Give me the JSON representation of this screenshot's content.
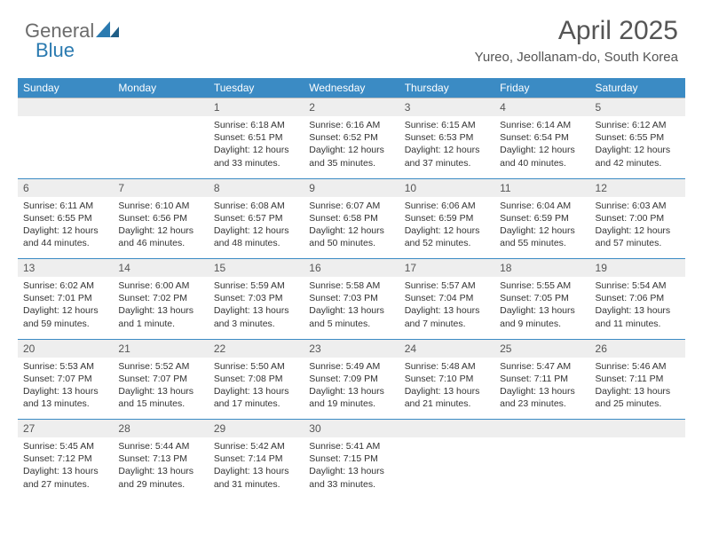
{
  "brand": {
    "part1": "General",
    "part2": "Blue"
  },
  "colors": {
    "accent": "#3b8bc4",
    "header_gray": "#eeeeee",
    "text": "#333333",
    "title": "#555555",
    "logo_gray": "#6b6b6b",
    "logo_blue": "#2a7ab0"
  },
  "title": "April 2025",
  "location": "Yureo, Jeollanam-do, South Korea",
  "day_headers": [
    "Sunday",
    "Monday",
    "Tuesday",
    "Wednesday",
    "Thursday",
    "Friday",
    "Saturday"
  ],
  "weeks": [
    {
      "nums": [
        "",
        "",
        "1",
        "2",
        "3",
        "4",
        "5"
      ],
      "cells": [
        "",
        "",
        "Sunrise: 6:18 AM\nSunset: 6:51 PM\nDaylight: 12 hours and 33 minutes.",
        "Sunrise: 6:16 AM\nSunset: 6:52 PM\nDaylight: 12 hours and 35 minutes.",
        "Sunrise: 6:15 AM\nSunset: 6:53 PM\nDaylight: 12 hours and 37 minutes.",
        "Sunrise: 6:14 AM\nSunset: 6:54 PM\nDaylight: 12 hours and 40 minutes.",
        "Sunrise: 6:12 AM\nSunset: 6:55 PM\nDaylight: 12 hours and 42 minutes."
      ]
    },
    {
      "nums": [
        "6",
        "7",
        "8",
        "9",
        "10",
        "11",
        "12"
      ],
      "cells": [
        "Sunrise: 6:11 AM\nSunset: 6:55 PM\nDaylight: 12 hours and 44 minutes.",
        "Sunrise: 6:10 AM\nSunset: 6:56 PM\nDaylight: 12 hours and 46 minutes.",
        "Sunrise: 6:08 AM\nSunset: 6:57 PM\nDaylight: 12 hours and 48 minutes.",
        "Sunrise: 6:07 AM\nSunset: 6:58 PM\nDaylight: 12 hours and 50 minutes.",
        "Sunrise: 6:06 AM\nSunset: 6:59 PM\nDaylight: 12 hours and 52 minutes.",
        "Sunrise: 6:04 AM\nSunset: 6:59 PM\nDaylight: 12 hours and 55 minutes.",
        "Sunrise: 6:03 AM\nSunset: 7:00 PM\nDaylight: 12 hours and 57 minutes."
      ]
    },
    {
      "nums": [
        "13",
        "14",
        "15",
        "16",
        "17",
        "18",
        "19"
      ],
      "cells": [
        "Sunrise: 6:02 AM\nSunset: 7:01 PM\nDaylight: 12 hours and 59 minutes.",
        "Sunrise: 6:00 AM\nSunset: 7:02 PM\nDaylight: 13 hours and 1 minute.",
        "Sunrise: 5:59 AM\nSunset: 7:03 PM\nDaylight: 13 hours and 3 minutes.",
        "Sunrise: 5:58 AM\nSunset: 7:03 PM\nDaylight: 13 hours and 5 minutes.",
        "Sunrise: 5:57 AM\nSunset: 7:04 PM\nDaylight: 13 hours and 7 minutes.",
        "Sunrise: 5:55 AM\nSunset: 7:05 PM\nDaylight: 13 hours and 9 minutes.",
        "Sunrise: 5:54 AM\nSunset: 7:06 PM\nDaylight: 13 hours and 11 minutes."
      ]
    },
    {
      "nums": [
        "20",
        "21",
        "22",
        "23",
        "24",
        "25",
        "26"
      ],
      "cells": [
        "Sunrise: 5:53 AM\nSunset: 7:07 PM\nDaylight: 13 hours and 13 minutes.",
        "Sunrise: 5:52 AM\nSunset: 7:07 PM\nDaylight: 13 hours and 15 minutes.",
        "Sunrise: 5:50 AM\nSunset: 7:08 PM\nDaylight: 13 hours and 17 minutes.",
        "Sunrise: 5:49 AM\nSunset: 7:09 PM\nDaylight: 13 hours and 19 minutes.",
        "Sunrise: 5:48 AM\nSunset: 7:10 PM\nDaylight: 13 hours and 21 minutes.",
        "Sunrise: 5:47 AM\nSunset: 7:11 PM\nDaylight: 13 hours and 23 minutes.",
        "Sunrise: 5:46 AM\nSunset: 7:11 PM\nDaylight: 13 hours and 25 minutes."
      ]
    },
    {
      "nums": [
        "27",
        "28",
        "29",
        "30",
        "",
        "",
        ""
      ],
      "cells": [
        "Sunrise: 5:45 AM\nSunset: 7:12 PM\nDaylight: 13 hours and 27 minutes.",
        "Sunrise: 5:44 AM\nSunset: 7:13 PM\nDaylight: 13 hours and 29 minutes.",
        "Sunrise: 5:42 AM\nSunset: 7:14 PM\nDaylight: 13 hours and 31 minutes.",
        "Sunrise: 5:41 AM\nSunset: 7:15 PM\nDaylight: 13 hours and 33 minutes.",
        "",
        "",
        ""
      ]
    }
  ]
}
